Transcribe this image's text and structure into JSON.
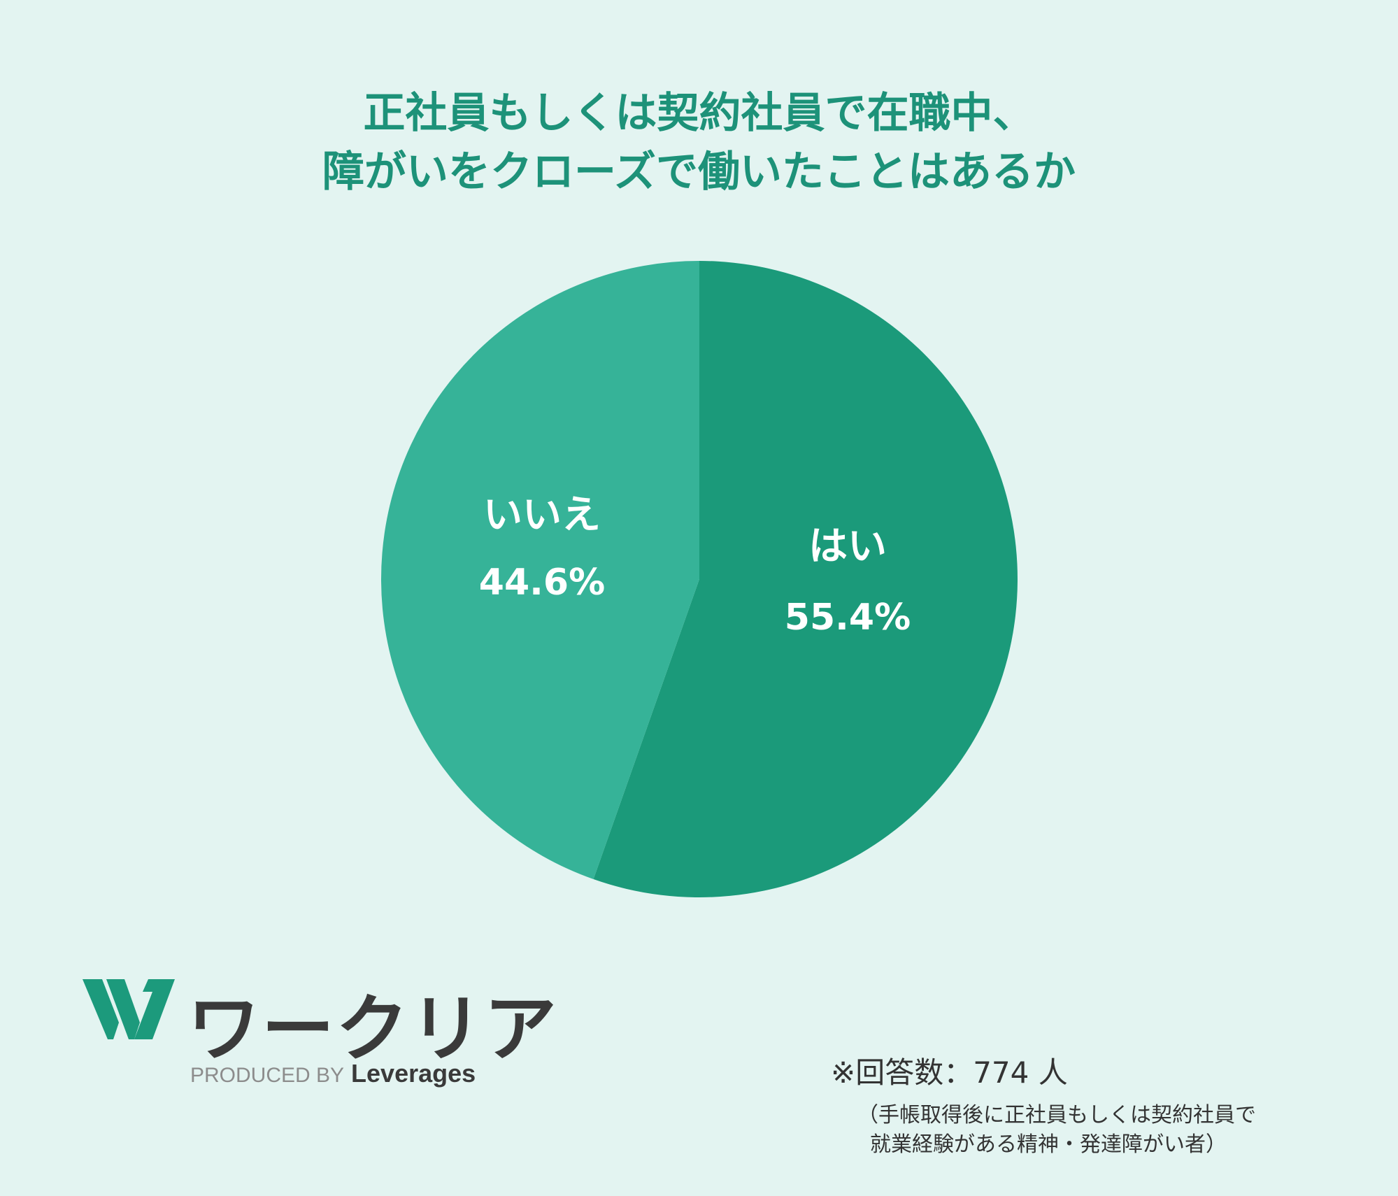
{
  "title": {
    "line1": "正社員もしくは契約社員で在職中、",
    "line2": "障がいをクローズで働いたことはあるか"
  },
  "chart_data": {
    "type": "pie",
    "title": "正社員もしくは契約社員で在職中、障がいをクローズで働いたことはあるか",
    "slices": [
      {
        "label": "はい",
        "value": 55.4,
        "display": "55.4%",
        "color": "#1b9a7a"
      },
      {
        "label": "いいえ",
        "value": 44.6,
        "display": "44.6%",
        "color": "#36b398"
      }
    ],
    "start": "12 o'clock",
    "direction": "clockwise"
  },
  "logo": {
    "name": "ワークリア",
    "produced_by": "PRODUCED BY",
    "company": "Leverages"
  },
  "footer": {
    "respondents": "※回答数：774 人",
    "note_line1": "（手帳取得後に正社員もしくは契約社員で",
    "note_line2": "就業経験がある精神・発達障がい者）"
  },
  "colors": {
    "background": "#e3f4f1",
    "title": "#1d9279",
    "logo_green": "#1c9a7c"
  }
}
